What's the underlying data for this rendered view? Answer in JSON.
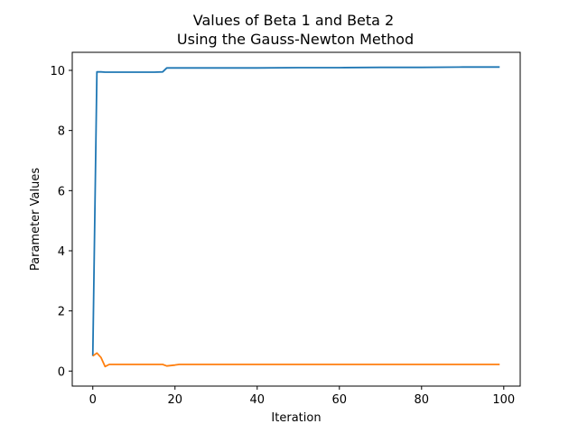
{
  "chart_data": {
    "type": "line",
    "title": "Values of Beta 1 and Beta 2",
    "subtitle": "Using the Gauss-Newton Method",
    "xlabel": "Iteration",
    "ylabel": "Parameter Values",
    "xlim": [
      -5,
      104
    ],
    "ylim": [
      -0.5,
      10.6
    ],
    "xticks": [
      0,
      20,
      40,
      60,
      80,
      100
    ],
    "yticks": [
      0,
      2,
      4,
      6,
      8,
      10
    ],
    "grid": false,
    "series": [
      {
        "color": "#1f77b4",
        "x": [
          0,
          1,
          2,
          3,
          5,
          10,
          15,
          17,
          18,
          20,
          30,
          40,
          50,
          60,
          70,
          80,
          90,
          99
        ],
        "y": [
          0.5,
          9.95,
          9.95,
          9.94,
          9.94,
          9.94,
          9.94,
          9.95,
          10.08,
          10.08,
          10.08,
          10.08,
          10.09,
          10.09,
          10.1,
          10.1,
          10.11,
          10.11
        ]
      },
      {
        "color": "#ff7f0e",
        "x": [
          0,
          1,
          2,
          3,
          4,
          5,
          10,
          15,
          17,
          18,
          20,
          21,
          30,
          40,
          50,
          60,
          70,
          80,
          90,
          99
        ],
        "y": [
          0.5,
          0.6,
          0.45,
          0.15,
          0.22,
          0.22,
          0.22,
          0.22,
          0.22,
          0.17,
          0.2,
          0.22,
          0.22,
          0.22,
          0.22,
          0.22,
          0.22,
          0.22,
          0.22,
          0.22
        ]
      }
    ]
  }
}
